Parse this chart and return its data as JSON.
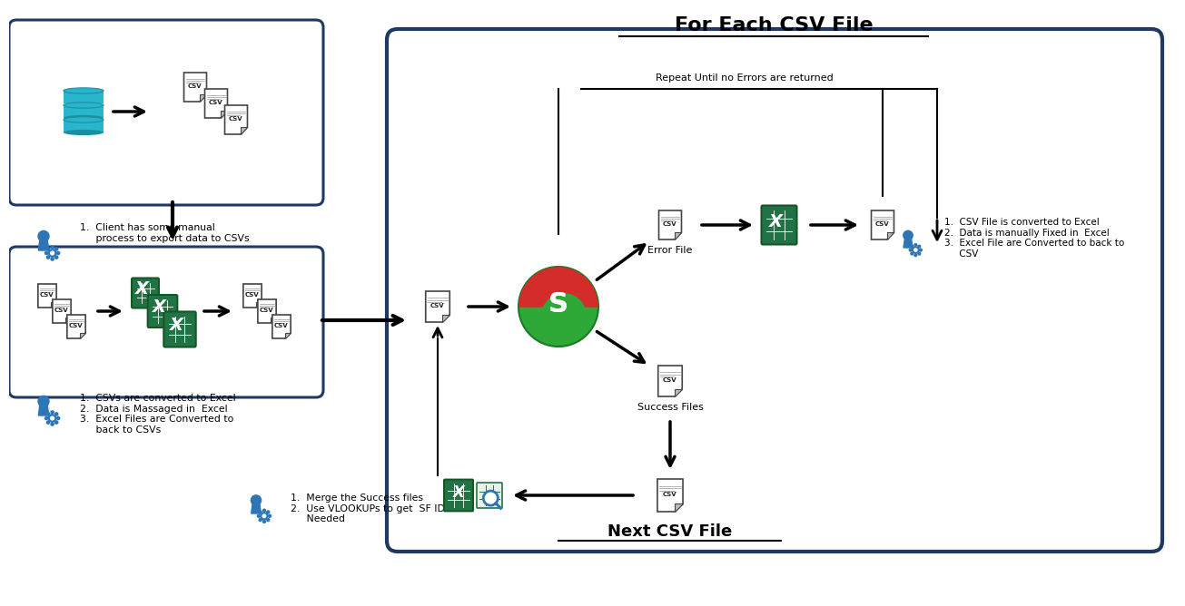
{
  "title": "For Each CSV File",
  "bg_color": "#ffffff",
  "box_border_color": "#1f3864",
  "arrow_color": "#000000",
  "text_color": "#000000",
  "blue_color": "#2e75b6",
  "repeat_label": "Repeat Until no Errors are returned",
  "next_label": "Next CSV File",
  "error_label": "Error File",
  "success_label": "Success Files",
  "step1_label": "1.  Client has some manual\n     process to export data to CSVs",
  "step2_label": "1.  CSVs are converted to Excel\n2.  Data is Massaged in  Excel\n3.  Excel Files are Converted to\n     back to CSVs",
  "step3_label": "1.  CSV File is converted to Excel\n2.  Data is manually Fixed in  Excel\n3.  Excel File are Converted to back to\n     CSV",
  "step4_label": "1.  Merge the Success files\n2.  Use VLOOKUPs to get  SF IDs as\n     Needed"
}
